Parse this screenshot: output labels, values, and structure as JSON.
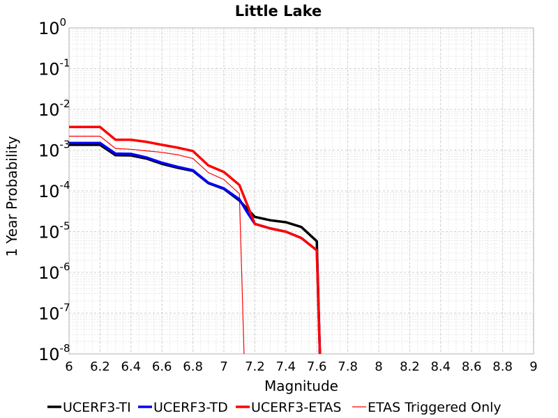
{
  "chart_data": {
    "type": "line",
    "title": "Little Lake",
    "xlabel": "Magnitude",
    "ylabel": "1 Year Probability",
    "xlim": [
      6,
      9
    ],
    "ylim_exponents": [
      -8,
      0
    ],
    "y_scale": "log",
    "x_ticks": [
      "6",
      "6.2",
      "6.4",
      "6.6",
      "6.8",
      "7",
      "7.2",
      "7.4",
      "7.6",
      "7.8",
      "8",
      "8.2",
      "8.4",
      "8.6",
      "8.8",
      "9"
    ],
    "y_tick_base": "10",
    "y_tick_exponents": [
      "0",
      "-1",
      "-2",
      "-3",
      "-4",
      "-5",
      "-6",
      "-7",
      "-8"
    ],
    "grid": true,
    "legend_position": "bottom",
    "series": [
      {
        "name": "UCERF3-TI",
        "color": "#000000",
        "width": "thick",
        "points": [
          [
            6.0,
            0.00135
          ],
          [
            6.2,
            0.00135
          ],
          [
            6.3,
            0.00075
          ],
          [
            6.4,
            0.00074
          ],
          [
            6.5,
            0.00062
          ],
          [
            6.6,
            0.00046
          ],
          [
            6.7,
            0.00037
          ],
          [
            6.8,
            0.00031
          ],
          [
            6.9,
            0.000155
          ],
          [
            7.0,
            0.000112
          ],
          [
            7.1,
            5.8e-05
          ],
          [
            7.2,
            2.3e-05
          ],
          [
            7.3,
            1.9e-05
          ],
          [
            7.4,
            1.7e-05
          ],
          [
            7.5,
            1.3e-05
          ],
          [
            7.6,
            5.8e-06
          ],
          [
            7.62,
            1e-08
          ]
        ]
      },
      {
        "name": "UCERF3-TD",
        "color": "#0000ff",
        "width": "thick",
        "points": [
          [
            6.0,
            0.0015
          ],
          [
            6.2,
            0.0015
          ],
          [
            6.3,
            0.00082
          ],
          [
            6.4,
            0.00081
          ],
          [
            6.5,
            0.00066
          ],
          [
            6.6,
            0.00049
          ],
          [
            6.7,
            0.00039
          ],
          [
            6.8,
            0.00032
          ],
          [
            6.9,
            0.000158
          ],
          [
            7.0,
            0.000115
          ],
          [
            7.1,
            6.2e-05
          ],
          [
            7.15,
            3e-05
          ],
          [
            7.2,
            1.55e-05
          ],
          [
            7.3,
            1.2e-05
          ],
          [
            7.4,
            1e-05
          ],
          [
            7.5,
            7e-06
          ],
          [
            7.6,
            3.5e-06
          ],
          [
            7.62,
            1e-08
          ]
        ]
      },
      {
        "name": "UCERF3-ETAS",
        "color": "#ff0000",
        "width": "thick",
        "points": [
          [
            6.0,
            0.0037
          ],
          [
            6.2,
            0.0037
          ],
          [
            6.3,
            0.0018
          ],
          [
            6.4,
            0.0018
          ],
          [
            6.5,
            0.0016
          ],
          [
            6.6,
            0.00135
          ],
          [
            6.7,
            0.00115
          ],
          [
            6.8,
            0.00095
          ],
          [
            6.9,
            0.00042
          ],
          [
            7.0,
            0.00029
          ],
          [
            7.1,
            0.00014
          ],
          [
            7.2,
            1.55e-05
          ],
          [
            7.3,
            1.2e-05
          ],
          [
            7.4,
            1e-05
          ],
          [
            7.5,
            7e-06
          ],
          [
            7.6,
            3.5e-06
          ],
          [
            7.62,
            1e-08
          ]
        ]
      },
      {
        "name": "ETAS Triggered Only",
        "color": "#ff0000",
        "width": "thin",
        "points": [
          [
            6.0,
            0.0022
          ],
          [
            6.2,
            0.0022
          ],
          [
            6.3,
            0.0011
          ],
          [
            6.4,
            0.00105
          ],
          [
            6.5,
            0.00096
          ],
          [
            6.6,
            0.00088
          ],
          [
            6.7,
            0.00077
          ],
          [
            6.8,
            0.00062
          ],
          [
            6.9,
            0.00028
          ],
          [
            7.0,
            0.00019
          ],
          [
            7.1,
            8.5e-05
          ],
          [
            7.13,
            1e-08
          ]
        ]
      }
    ]
  }
}
